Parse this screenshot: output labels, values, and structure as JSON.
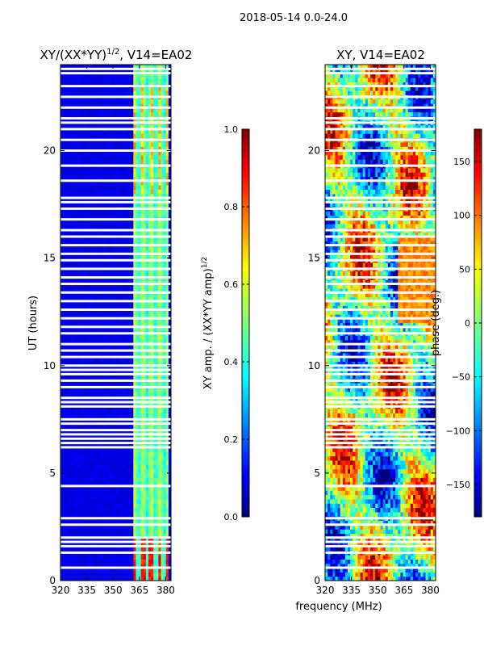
{
  "suptitle": "2018-05-14 0.0-24.0",
  "colors": {
    "background": "#ffffff",
    "jet": [
      "#00007f",
      "#0000ff",
      "#007fff",
      "#00ffff",
      "#7fff7f",
      "#ffff00",
      "#ff7f00",
      "#ff0000",
      "#7f0000"
    ],
    "flag_gap": "#ffffff"
  },
  "chart_data": [
    {
      "type": "heatmap",
      "name": "amplitude",
      "title_main": "XY/(XX*YY)",
      "title_sup": "1/2",
      "title_rest": ", V14=EA02",
      "xlabel": "",
      "ylabel": "UT (hours)",
      "xlim": [
        320,
        383
      ],
      "ylim": [
        0,
        24
      ],
      "xticks": [
        320,
        335,
        350,
        365,
        380
      ],
      "yticks": [
        0,
        5,
        10,
        15,
        20
      ],
      "colorbar": {
        "label_main": "XY amp. / (XX*YY amp)",
        "label_sup": "1/2",
        "range": [
          0.0,
          1.0
        ],
        "ticks": [
          "0.0",
          "0.2",
          "0.4",
          "0.6",
          "0.8",
          "1.0"
        ]
      },
      "band_start_mhz": 361,
      "band_end_mhz": 381,
      "background_level": 0.08,
      "band_level": 0.35,
      "bright_level": 0.6,
      "flag_rows_hours": [
        0.6,
        1.3,
        1.6,
        1.8,
        2.0,
        2.6,
        2.9,
        4.4,
        6.2,
        6.4,
        6.6,
        6.8,
        7.0,
        7.3,
        7.5,
        8.1,
        8.3,
        8.5,
        9.0,
        9.3,
        9.6,
        9.8,
        10.0,
        10.4,
        10.7,
        11.0,
        11.5,
        11.8,
        12.2,
        12.6,
        13.0,
        13.4,
        13.8,
        14.1,
        14.5,
        14.9,
        15.2,
        15.6,
        16.0,
        16.3,
        16.8,
        17.3,
        17.6,
        17.8,
        18.6,
        19.3,
        20.0,
        20.5,
        21.0,
        21.3,
        21.5,
        22.0,
        22.5,
        23.0,
        23.6,
        23.8
      ]
    },
    {
      "type": "heatmap",
      "name": "phase",
      "title_main": "XY, V14=EA02",
      "xlabel": "frequency (MHz)",
      "ylabel": "",
      "xlim": [
        320,
        383
      ],
      "ylim": [
        0,
        24
      ],
      "xticks": [
        320,
        335,
        350,
        365,
        380
      ],
      "yticks": [
        0,
        5,
        10,
        15,
        20
      ],
      "colorbar": {
        "label_main": "phase (deg.)",
        "range": [
          -180,
          180
        ],
        "ticks": [
          "150",
          "100",
          "50",
          "0",
          "−50",
          "−100",
          "−150"
        ],
        "tick_values": [
          150,
          100,
          50,
          0,
          -50,
          -100,
          -150
        ]
      },
      "flag_rows_hours": [
        0.6,
        1.3,
        1.6,
        1.8,
        2.0,
        2.6,
        2.9,
        4.4,
        6.2,
        6.4,
        6.6,
        6.8,
        7.0,
        7.3,
        7.5,
        8.1,
        8.3,
        8.5,
        9.0,
        9.3,
        9.6,
        9.8,
        10.0,
        10.4,
        10.7,
        11.0,
        11.5,
        11.8,
        12.2,
        12.6,
        13.0,
        13.4,
        13.8,
        14.1,
        14.5,
        14.9,
        15.2,
        15.6,
        16.0,
        16.3,
        16.8,
        17.3,
        17.6,
        17.8,
        18.6,
        19.3,
        20.0,
        20.5,
        21.0,
        21.3,
        21.5,
        22.0,
        22.5,
        23.0,
        23.6,
        23.8
      ]
    }
  ]
}
